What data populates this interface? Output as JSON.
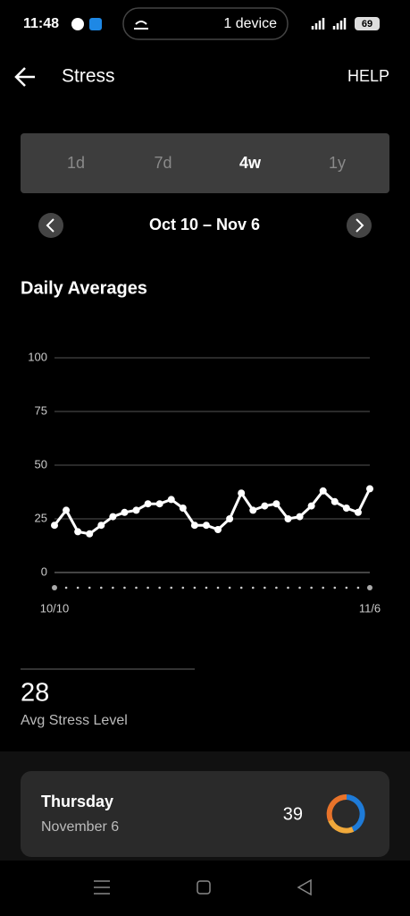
{
  "status_bar": {
    "time": "11:48",
    "device": "1 device",
    "battery": "69"
  },
  "header": {
    "title": "Stress",
    "help": "HELP"
  },
  "tabs": {
    "items": [
      "1d",
      "7d",
      "4w",
      "1y"
    ],
    "selected": 2
  },
  "date_range": "Oct 10 – Nov 6",
  "chart_data": {
    "type": "line",
    "title": "Daily Averages",
    "categories": [
      "10/10",
      null,
      null,
      null,
      null,
      null,
      null,
      null,
      null,
      null,
      null,
      null,
      null,
      null,
      null,
      null,
      null,
      null,
      null,
      null,
      null,
      null,
      null,
      null,
      null,
      null,
      null,
      "11/6"
    ],
    "values": [
      22,
      29,
      19,
      18,
      22,
      26,
      28,
      29,
      32,
      32,
      34,
      30,
      22,
      22,
      20,
      25,
      37,
      29,
      31,
      32,
      25,
      26,
      31,
      38,
      33,
      30,
      28,
      39
    ],
    "color": "#ffffff",
    "ylim": [
      0,
      100
    ],
    "yticks": [
      0,
      25,
      50,
      75,
      100
    ],
    "grid": true
  },
  "summary": {
    "value": "28",
    "label": "Avg Stress Level"
  },
  "card": {
    "day": "Thursday",
    "date": "November 6",
    "value": "39"
  }
}
